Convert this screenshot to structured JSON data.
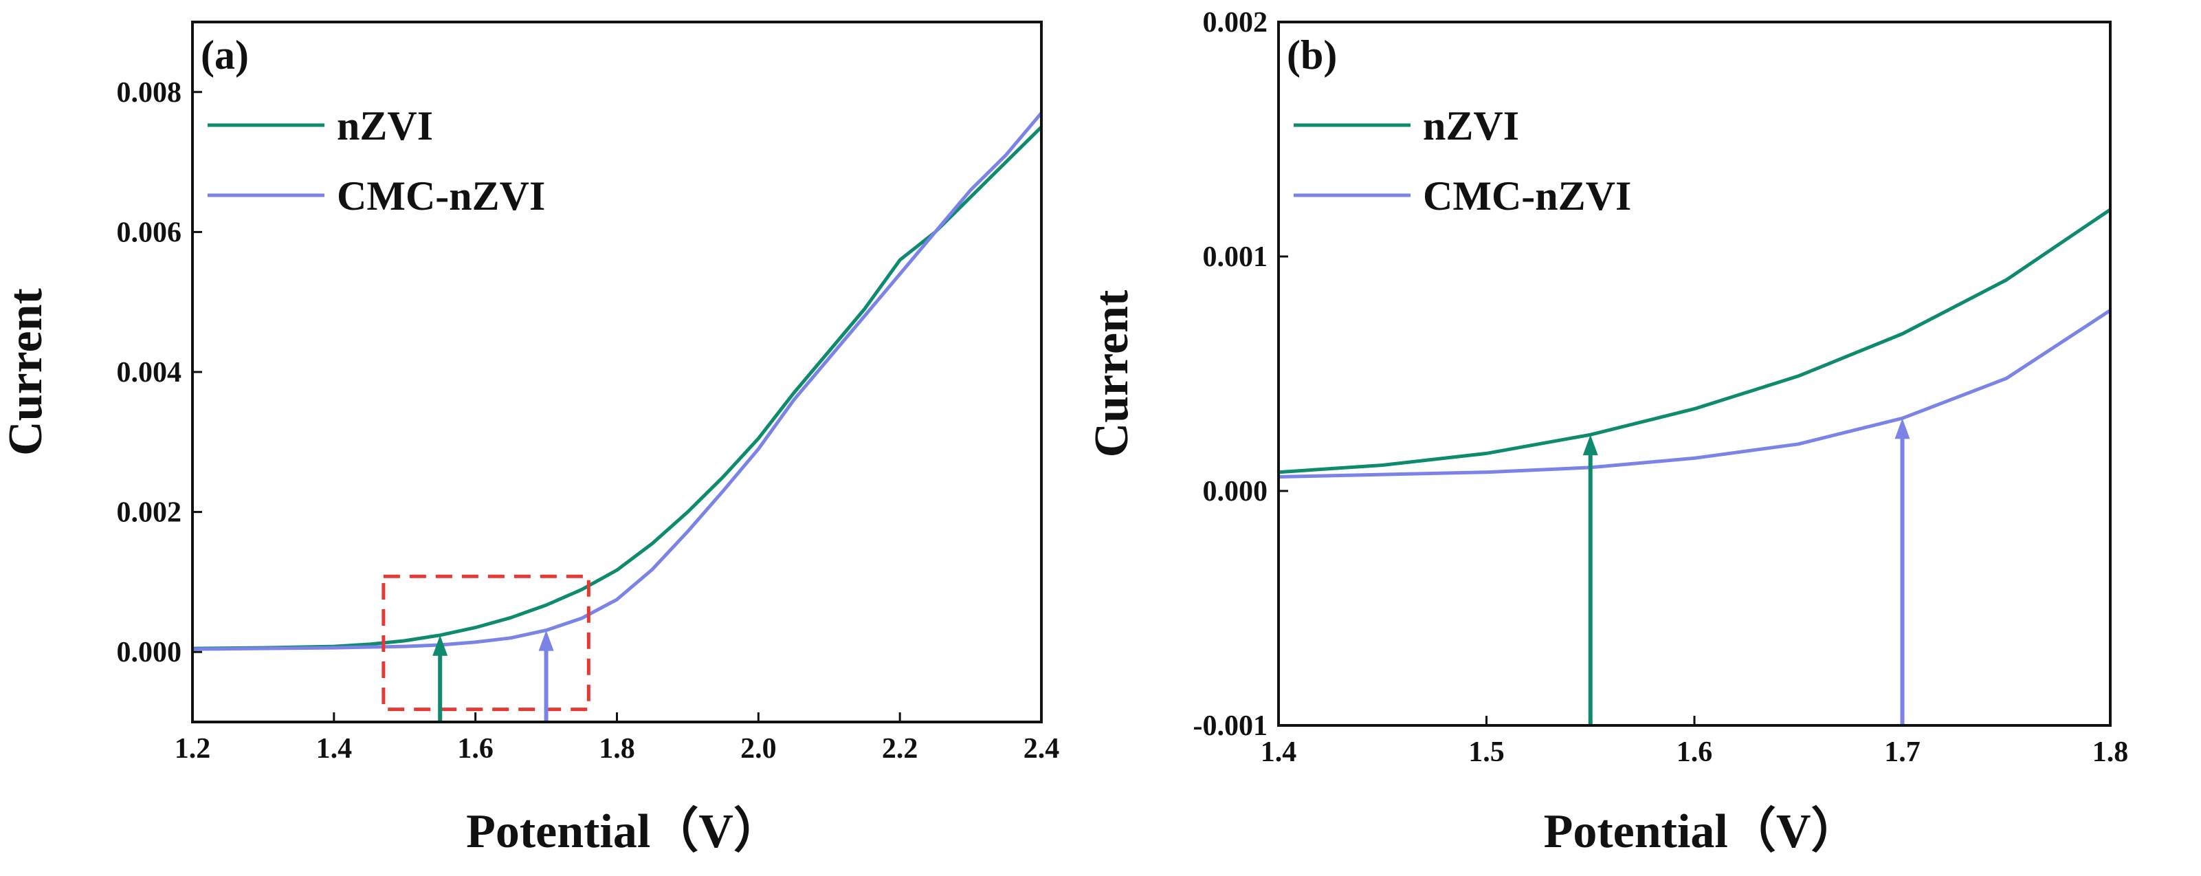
{
  "figure": {
    "background": "#ffffff"
  },
  "colors": {
    "nZVI": "#0e8a6e",
    "CMC-nZVI": "#7b84e6",
    "highlight_box": "#e53935",
    "axis": "#111111"
  },
  "chart_data": [
    {
      "id": "a",
      "type": "line",
      "panel_label": "(a)",
      "xlabel": "Potential（V）",
      "ylabel": "Current",
      "xlim": [
        1.2,
        2.4
      ],
      "ylim": [
        -0.001,
        0.009
      ],
      "xticks": [
        1.2,
        1.4,
        1.6,
        1.8,
        2.0,
        2.2,
        2.4
      ],
      "xtick_labels": [
        "1.2",
        "1.4",
        "1.6",
        "1.8",
        "2.0",
        "2.2",
        "2.4"
      ],
      "yticks": [
        0.0,
        0.002,
        0.004,
        0.006,
        0.008
      ],
      "ytick_labels": [
        "0.000",
        "0.002",
        "0.004",
        "0.006",
        "0.008"
      ],
      "legend": {
        "position": "top-left",
        "entries": [
          "nZVI",
          "CMC-nZVI"
        ]
      },
      "series": [
        {
          "name": "nZVI",
          "x": [
            1.2,
            1.3,
            1.4,
            1.45,
            1.5,
            1.55,
            1.6,
            1.65,
            1.7,
            1.75,
            1.8,
            1.85,
            1.9,
            1.95,
            2.0,
            2.05,
            2.1,
            2.15,
            2.2,
            2.25,
            2.3,
            2.35,
            2.4
          ],
          "y": [
            5e-05,
            6e-05,
            8e-05,
            0.00011,
            0.00016,
            0.00024,
            0.00035,
            0.00049,
            0.00067,
            0.00089,
            0.00117,
            0.00155,
            0.002,
            0.0025,
            0.00305,
            0.0037,
            0.0043,
            0.0049,
            0.0056,
            0.006,
            0.0065,
            0.007,
            0.0075
          ]
        },
        {
          "name": "CMC-nZVI",
          "x": [
            1.2,
            1.3,
            1.4,
            1.5,
            1.55,
            1.6,
            1.65,
            1.7,
            1.75,
            1.8,
            1.85,
            1.9,
            1.95,
            2.0,
            2.05,
            2.1,
            2.15,
            2.2,
            2.25,
            2.3,
            2.35,
            2.4
          ],
          "y": [
            4e-05,
            5e-05,
            6e-05,
            8e-05,
            0.0001,
            0.00014,
            0.0002,
            0.00031,
            0.00048,
            0.00075,
            0.00118,
            0.00172,
            0.0023,
            0.0029,
            0.0036,
            0.0042,
            0.0048,
            0.0054,
            0.006,
            0.0066,
            0.0071,
            0.0077
          ]
        }
      ],
      "arrows": [
        {
          "series": "nZVI",
          "x": 1.55,
          "y_tip": 0.00024
        },
        {
          "series": "CMC-nZVI",
          "x": 1.7,
          "y_tip": 0.00031
        }
      ],
      "highlight_box": {
        "x": [
          1.47,
          1.76
        ],
        "y": [
          -0.00082,
          0.00108
        ]
      }
    },
    {
      "id": "b",
      "type": "line",
      "panel_label": "(b)",
      "xlabel": "Potential（V）",
      "ylabel": "Current",
      "xlim": [
        1.4,
        1.8
      ],
      "ylim": [
        -0.001,
        0.002
      ],
      "xticks": [
        1.4,
        1.5,
        1.6,
        1.7,
        1.8
      ],
      "xtick_labels": [
        "1.4",
        "1.5",
        "1.6",
        "1.7",
        "1.8"
      ],
      "yticks": [
        -0.001,
        0.0,
        0.001,
        0.002
      ],
      "ytick_labels": [
        "-0.001",
        "0.000",
        "0.001",
        "0.002"
      ],
      "legend": {
        "position": "top-left",
        "entries": [
          "nZVI",
          "CMC-nZVI"
        ]
      },
      "series": [
        {
          "name": "nZVI",
          "x": [
            1.4,
            1.45,
            1.5,
            1.55,
            1.6,
            1.65,
            1.7,
            1.75,
            1.8
          ],
          "y": [
            8e-05,
            0.00011,
            0.00016,
            0.00024,
            0.00035,
            0.00049,
            0.00067,
            0.0009,
            0.0012
          ]
        },
        {
          "name": "CMC-nZVI",
          "x": [
            1.4,
            1.45,
            1.5,
            1.55,
            1.6,
            1.65,
            1.7,
            1.75,
            1.8
          ],
          "y": [
            6e-05,
            7e-05,
            8e-05,
            0.0001,
            0.00014,
            0.0002,
            0.00031,
            0.00048,
            0.00077
          ]
        }
      ],
      "arrows": [
        {
          "series": "nZVI",
          "x": 1.55,
          "y_tip": 0.00024
        },
        {
          "series": "CMC-nZVI",
          "x": 1.7,
          "y_tip": 0.00031
        }
      ]
    }
  ]
}
